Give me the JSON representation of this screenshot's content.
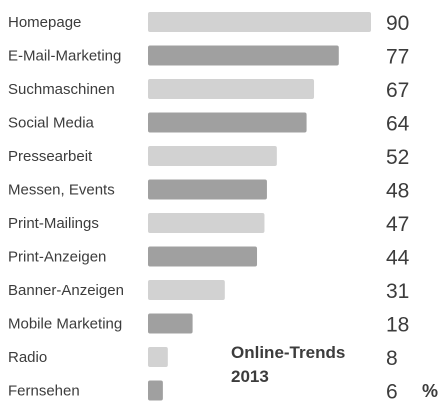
{
  "chart_data": {
    "type": "bar",
    "orientation": "horizontal",
    "title_lines": [
      "Online-Trends",
      "2013"
    ],
    "unit": "%",
    "categories": [
      "Homepage",
      "E-Mail-Marketing",
      "Suchmaschinen",
      "Social Media",
      "Pressearbeit",
      "Messen, Events",
      "Print-Mailings",
      "Print-Anzeigen",
      "Banner-Anzeigen",
      "Mobile Marketing",
      "Radio",
      "Fernsehen"
    ],
    "values": [
      90,
      77,
      67,
      64,
      52,
      48,
      47,
      44,
      31,
      18,
      8,
      6
    ],
    "value_labels": [
      "90",
      "77",
      "67",
      "64",
      "52",
      "48",
      "47",
      "44",
      "31",
      "18",
      "8",
      "6"
    ],
    "colors": {
      "light_bar": "#d2d2d2",
      "dark_bar": "#a0a0a0",
      "text": "#3c3c3c"
    },
    "xlim": [
      0,
      90
    ],
    "grid": false,
    "legend": "none"
  }
}
